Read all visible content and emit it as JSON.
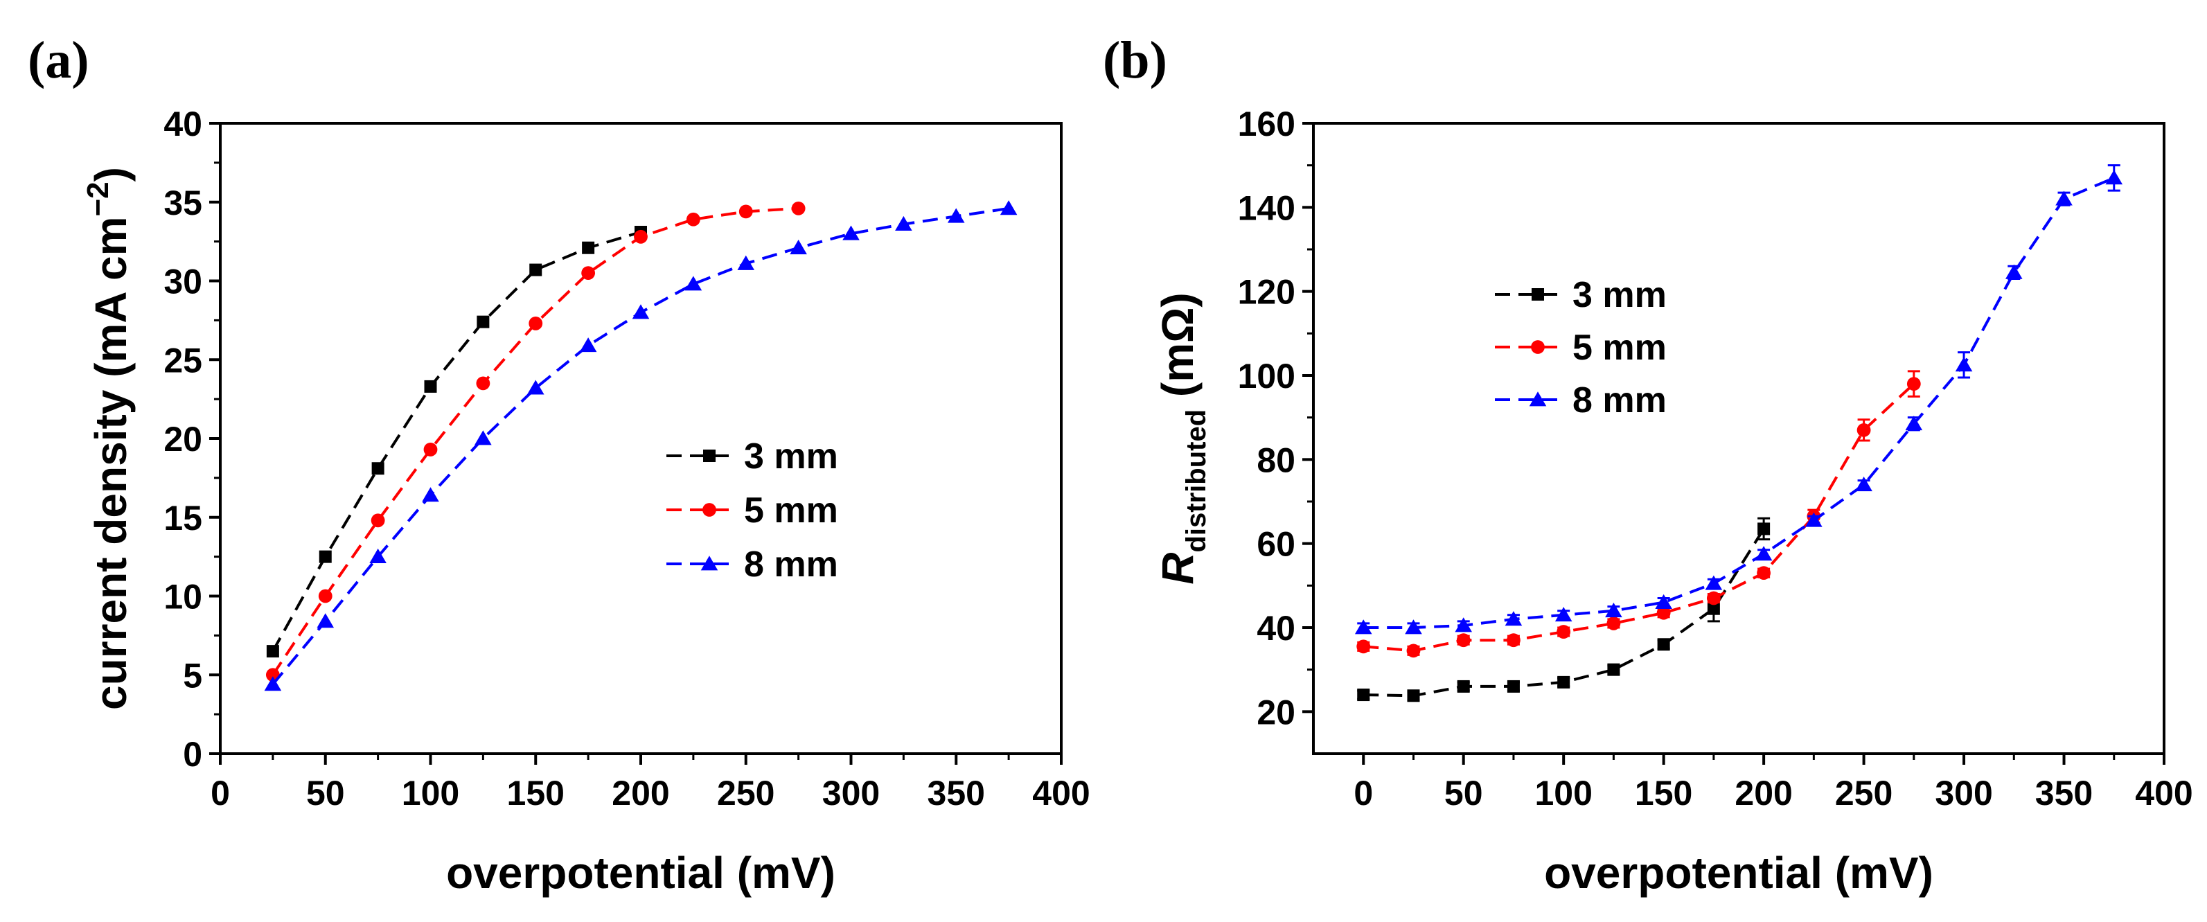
{
  "chart_data": [
    {
      "type": "line",
      "panel_label": "(a)",
      "xlabel": "overpotential (mV)",
      "ylabel_main": "current density (mA cm",
      "ylabel_sup": "−2",
      "ylabel_close": ")",
      "xlim": [
        0,
        400
      ],
      "ylim": [
        0,
        40
      ],
      "xticks": [
        "0",
        "50",
        "100",
        "150",
        "200",
        "250",
        "300",
        "350",
        "400"
      ],
      "yticks": [
        "0",
        "5",
        "10",
        "15",
        "20",
        "25",
        "30",
        "35",
        "40"
      ],
      "legend_position": "center-right",
      "series": [
        {
          "name": "3 mm",
          "color": "#000000",
          "marker": "square",
          "x": [
            25,
            50,
            75,
            100,
            125,
            150,
            175,
            200
          ],
          "y": [
            6.5,
            12.5,
            18.1,
            23.3,
            27.4,
            30.7,
            32.1,
            33.1
          ]
        },
        {
          "name": "5 mm",
          "color": "#ff0000",
          "marker": "circle",
          "x": [
            25,
            50,
            75,
            100,
            125,
            150,
            175,
            200,
            225,
            250,
            275
          ],
          "y": [
            5.0,
            10.0,
            14.8,
            19.3,
            23.5,
            27.3,
            30.5,
            32.8,
            33.9,
            34.4,
            34.6
          ]
        },
        {
          "name": "8 mm",
          "color": "#0000ff",
          "marker": "triangle",
          "x": [
            25,
            50,
            75,
            100,
            125,
            150,
            175,
            200,
            225,
            250,
            275,
            300,
            325,
            350,
            375
          ],
          "y": [
            4.4,
            8.4,
            12.5,
            16.4,
            20.0,
            23.2,
            25.9,
            28.0,
            29.8,
            31.1,
            32.1,
            33.0,
            33.6,
            34.1,
            34.6
          ]
        }
      ]
    },
    {
      "type": "line",
      "panel_label": "(b)",
      "xlabel": "overpotential (mV)",
      "ylabel_italic": "R",
      "ylabel_sub": "distributed",
      "ylabel_unit": " (mΩ)",
      "xlim": [
        -25,
        400
      ],
      "ylim": [
        10,
        160
      ],
      "xticks": [
        "0",
        "50",
        "100",
        "150",
        "200",
        "250",
        "300",
        "350",
        "400"
      ],
      "xtick_values": [
        0,
        50,
        100,
        150,
        200,
        250,
        300,
        350,
        400
      ],
      "yticks": [
        "20",
        "40",
        "60",
        "80",
        "100",
        "120",
        "140",
        "160"
      ],
      "ytick_values": [
        20,
        40,
        60,
        80,
        100,
        120,
        140,
        160
      ],
      "legend_position": "upper-left",
      "series": [
        {
          "name": "3 mm",
          "color": "#000000",
          "marker": "square",
          "x": [
            0,
            25,
            50,
            75,
            100,
            125,
            150,
            175,
            200
          ],
          "y": [
            24,
            23.8,
            26,
            26,
            27,
            30,
            36,
            44.5,
            63.5
          ],
          "err": [
            1,
            1,
            1,
            1,
            1,
            1,
            1,
            3,
            2.5
          ]
        },
        {
          "name": "5 mm",
          "color": "#ff0000",
          "marker": "circle",
          "x": [
            0,
            25,
            50,
            75,
            100,
            125,
            150,
            175,
            200,
            225,
            250,
            275
          ],
          "y": [
            35.5,
            34.5,
            37,
            37,
            39,
            41,
            43.5,
            47,
            53,
            66.5,
            87,
            98
          ],
          "err": [
            1,
            1,
            1,
            1,
            1,
            1,
            1,
            1,
            1,
            1.5,
            2.5,
            3
          ]
        },
        {
          "name": "8 mm",
          "color": "#0000ff",
          "marker": "triangle",
          "x": [
            0,
            25,
            50,
            75,
            100,
            125,
            150,
            175,
            200,
            225,
            250,
            275,
            300,
            325,
            350,
            375
          ],
          "y": [
            40,
            40,
            40.5,
            42,
            43,
            44,
            46,
            50.5,
            57.5,
            65.5,
            74,
            88.5,
            102.5,
            124.5,
            142,
            147
          ],
          "err": [
            1,
            1,
            1,
            1,
            1,
            1,
            1,
            1,
            1,
            1,
            1,
            1.5,
            3,
            1.5,
            1.5,
            3
          ]
        }
      ]
    }
  ]
}
